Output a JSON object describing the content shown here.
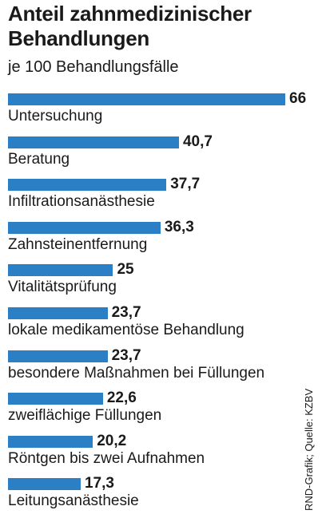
{
  "title": "Anteil zahnmedizinischer Behandlungen",
  "subtitle": "je 100 Behandlungsfälle",
  "source": "RND-Grafik; Quelle: KZBV",
  "colors": {
    "bar": "#2b7fc5",
    "text": "#1a1a1a"
  },
  "chart_data": {
    "type": "bar",
    "orientation": "horizontal",
    "title": "Anteil zahnmedizinischer Behandlungen",
    "subtitle": "je 100 Behandlungsfälle",
    "categories": [
      "Untersuchung",
      "Beratung",
      "Infiltrationsanästhesie",
      "Zahnsteinentfernung",
      "Vitalitätsprüfung",
      "lokale medikamentöse Behandlung",
      "besondere Maßnahmen bei Füllungen",
      "zweiflächige Füllungen",
      "Röntgen bis zwei Aufnahmen",
      "Leitungsanästhesie"
    ],
    "values": [
      66,
      40.7,
      37.7,
      36.3,
      25,
      23.7,
      23.7,
      22.6,
      20.2,
      17.3
    ],
    "value_labels": [
      "66",
      "40,7",
      "37,7",
      "36,3",
      "25",
      "23,7",
      "23,7",
      "22,6",
      "20,2",
      "17,3"
    ],
    "xlim": [
      0,
      66
    ],
    "grid": false,
    "legend": "none"
  }
}
